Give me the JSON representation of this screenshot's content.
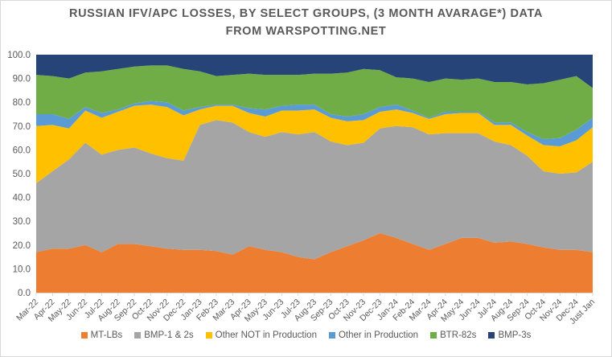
{
  "chart_data": {
    "type": "area",
    "stacked": true,
    "title": "RUSSIAN IFV/APC LOSSES, BY SELECT GROUPS, (3 MONTH AVARAGE*) DATA",
    "subtitle": "FROM WARSPOTTING.NET",
    "xlabel": "",
    "ylabel": "",
    "ylim": [
      0,
      100
    ],
    "yticks": [
      "0.0",
      "10.0",
      "20.0",
      "30.0",
      "40.0",
      "50.0",
      "60.0",
      "70.0",
      "80.0",
      "90.0",
      "100.0"
    ],
    "grid": false,
    "legend_position": "bottom",
    "categories": [
      "Mar-22",
      "Apr-22",
      "May-22",
      "Jun-22",
      "Jul-22",
      "Aug-22",
      "Sep-22",
      "Oct-22",
      "Nov-22",
      "Dec-22",
      "Jan-23",
      "Feb-23",
      "Mar-23",
      "Apr-23",
      "May-23",
      "Jun-23",
      "Jul-23",
      "Aug-23",
      "Sep-23",
      "Oct-23",
      "Nov-23",
      "Dec-23",
      "Jan-24",
      "Feb-24",
      "Mar-24",
      "Apr-24",
      "May-24",
      "Jun-24",
      "Jul-24",
      "Aug-24",
      "Sep-24",
      "Oct-24",
      "Nov-24",
      "Dec-24",
      "Just Jan"
    ],
    "series": [
      {
        "name": "MT-LBs",
        "color": "#ed7d31",
        "values": [
          17,
          18.5,
          18.5,
          20,
          17,
          20.5,
          20.5,
          19.5,
          18.5,
          18,
          18,
          17.5,
          16,
          19.5,
          18,
          17,
          15,
          14,
          17,
          19.5,
          22,
          25,
          23,
          20.5,
          18,
          20.5,
          23,
          23,
          21,
          21.5,
          20.5,
          19,
          18,
          18,
          17
        ]
      },
      {
        "name": "BMP-1 & 2s",
        "color": "#a5a5a5",
        "values": [
          29,
          32.5,
          37.5,
          43,
          41,
          39.5,
          40.5,
          39,
          38,
          37.5,
          52.5,
          55,
          55.5,
          48,
          47.5,
          50.5,
          51.5,
          53.5,
          46.5,
          42.5,
          41,
          44,
          47,
          49,
          48.5,
          46.5,
          44,
          44,
          42.5,
          40.5,
          37,
          32,
          32,
          32.5,
          38
        ]
      },
      {
        "name": "Other NOT in Production",
        "color": "#ffc000",
        "values": [
          24,
          19.5,
          13,
          13.5,
          15.5,
          16,
          17.5,
          20.5,
          21.5,
          19,
          6.5,
          6,
          7,
          8,
          8.5,
          9,
          10,
          9.5,
          10,
          10,
          9.5,
          7,
          7,
          6,
          6.5,
          8,
          8.5,
          8.5,
          7,
          8.5,
          8.5,
          11,
          11.5,
          13.5,
          14.5
        ]
      },
      {
        "name": "Other in Production",
        "color": "#5b9bd5",
        "values": [
          5,
          4.5,
          4,
          1.5,
          2,
          1,
          1,
          1.5,
          2,
          2,
          1,
          0.5,
          0.5,
          2,
          3,
          2,
          2.5,
          2,
          1.5,
          2,
          2.5,
          2,
          2,
          1,
          0.5,
          1,
          0.5,
          0.5,
          1,
          1,
          1.5,
          2.5,
          3.5,
          4.5,
          4
        ]
      },
      {
        "name": "BTR-82s",
        "color": "#70ad47",
        "values": [
          16.5,
          16,
          17,
          14.5,
          17.5,
          17,
          15.5,
          15,
          15.5,
          17.5,
          15,
          12,
          12.5,
          14.5,
          14.5,
          13,
          12.5,
          13,
          17,
          18.5,
          19,
          15.5,
          11.5,
          13.5,
          15,
          14,
          13.5,
          14,
          17,
          17,
          20,
          23.5,
          24.5,
          22.5,
          12.5
        ]
      },
      {
        "name": "BMP-3s",
        "color": "#264478",
        "values": [
          8.5,
          9,
          10,
          7.5,
          7,
          6,
          5,
          4.5,
          4.5,
          6,
          7,
          9,
          8.5,
          8,
          8.5,
          8.5,
          8.5,
          8,
          8,
          7.5,
          6,
          6.5,
          9.5,
          10,
          11.5,
          10,
          10.5,
          10,
          11.5,
          11.5,
          12.5,
          12,
          10.5,
          9,
          14
        ]
      }
    ]
  }
}
